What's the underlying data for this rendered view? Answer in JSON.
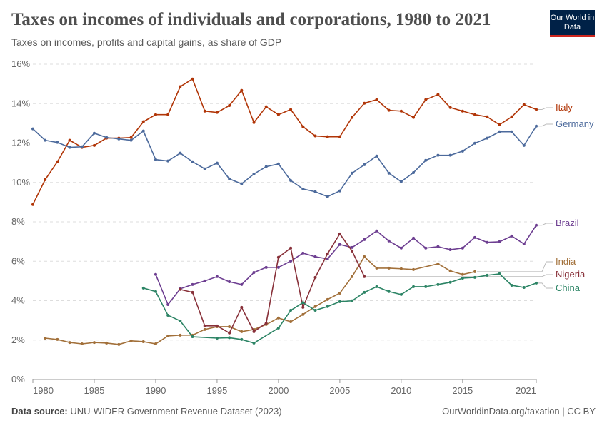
{
  "header": {
    "title": "Taxes on incomes of individuals and corporations, 1980 to 2021",
    "subtitle": "Taxes on incomes, profits and capital gains, as share of GDP",
    "logo_text": "Our World in Data"
  },
  "footer": {
    "source_label": "Data source:",
    "source": "UNU-WIDER Government Revenue Dataset (2023)",
    "link": "OurWorldinData.org/taxation | CC BY"
  },
  "chart_data": {
    "type": "line",
    "xlim": [
      1980,
      2021
    ],
    "ylim": [
      0,
      16
    ],
    "grid": "horizontal dashed",
    "legend": "right (inline labels)",
    "x_ticks": [
      "1980",
      "1985",
      "1990",
      "1995",
      "2000",
      "2005",
      "2010",
      "2015",
      "2021"
    ],
    "y_ticks": [
      "0%",
      "2%",
      "4%",
      "6%",
      "8%",
      "10%",
      "12%",
      "14%",
      "16%"
    ],
    "series": [
      {
        "name": "Italy",
        "color": "#b13507",
        "start": 1980,
        "values": [
          8.88,
          10.14,
          11.05,
          12.14,
          11.78,
          11.88,
          12.25,
          12.25,
          12.28,
          13.08,
          13.44,
          13.44,
          14.86,
          15.25,
          13.62,
          13.55,
          13.9,
          14.67,
          13.04,
          13.84,
          13.44,
          13.7,
          12.83,
          12.36,
          12.32,
          12.32,
          13.3,
          14.02,
          14.2,
          13.66,
          13.62,
          13.3,
          14.2,
          14.46,
          13.8,
          13.62,
          13.44,
          13.33,
          12.93,
          13.33,
          13.95,
          13.7
        ]
      },
      {
        "name": "Germany",
        "color": "#4c6a9c",
        "start": 1980,
        "values": [
          12.72,
          12.14,
          12.03,
          11.78,
          11.81,
          12.5,
          12.28,
          12.21,
          12.14,
          12.61,
          11.16,
          11.09,
          11.49,
          11.05,
          10.69,
          10.98,
          10.18,
          9.93,
          10.43,
          10.8,
          10.94,
          10.1,
          9.67,
          9.53,
          9.28,
          9.57,
          10.47,
          10.9,
          11.34,
          10.47,
          10.04,
          10.5,
          11.12,
          11.38,
          11.38,
          11.59,
          11.99,
          12.25,
          12.57,
          12.57,
          11.88,
          12.86
        ]
      },
      {
        "name": "Brazil",
        "color": "#6d3e91",
        "start": 1990,
        "values": [
          5.33,
          3.8,
          4.6,
          4.82,
          5.0,
          5.22,
          4.96,
          4.82,
          5.43,
          5.69,
          5.69,
          6.01,
          6.41,
          6.23,
          6.12,
          6.85,
          6.7,
          7.1,
          7.54,
          7.03,
          6.67,
          7.17,
          6.67,
          6.74,
          6.59,
          6.67,
          7.21,
          6.96,
          6.99,
          7.28,
          6.88,
          7.83
        ]
      },
      {
        "name": "India",
        "color": "#a2703a",
        "start": 1981,
        "values": [
          2.1,
          2.03,
          1.88,
          1.81,
          1.88,
          1.85,
          1.78,
          1.96,
          1.92,
          1.81,
          2.21,
          2.25,
          2.25,
          2.54,
          2.68,
          2.68,
          2.43,
          2.54,
          2.79,
          3.12,
          2.93,
          3.3,
          3.7,
          4.06,
          4.38,
          5.22,
          6.23,
          5.65,
          5.65,
          5.62,
          5.58,
          null,
          5.87,
          5.51,
          5.33,
          5.47
        ]
      },
      {
        "name": "Nigeria",
        "color": "#883039",
        "start": 1992,
        "values": [
          4.57,
          4.42,
          2.72,
          2.72,
          2.36,
          3.66,
          2.43,
          2.86,
          6.2,
          6.67,
          3.66,
          5.18,
          6.38,
          7.39,
          6.52,
          5.22
        ]
      },
      {
        "name": "China",
        "color": "#2c8465",
        "start": 1989,
        "values": [
          4.64,
          4.46,
          3.26,
          2.97,
          2.17,
          null,
          2.1,
          2.12,
          2.03,
          1.85,
          null,
          2.61,
          3.51,
          3.9,
          3.51,
          3.7,
          3.95,
          3.99,
          4.42,
          4.71,
          4.46,
          4.31,
          4.71,
          4.71,
          4.82,
          4.93,
          5.14,
          5.18,
          5.29,
          5.36,
          4.78,
          4.67,
          4.89
        ]
      }
    ]
  }
}
